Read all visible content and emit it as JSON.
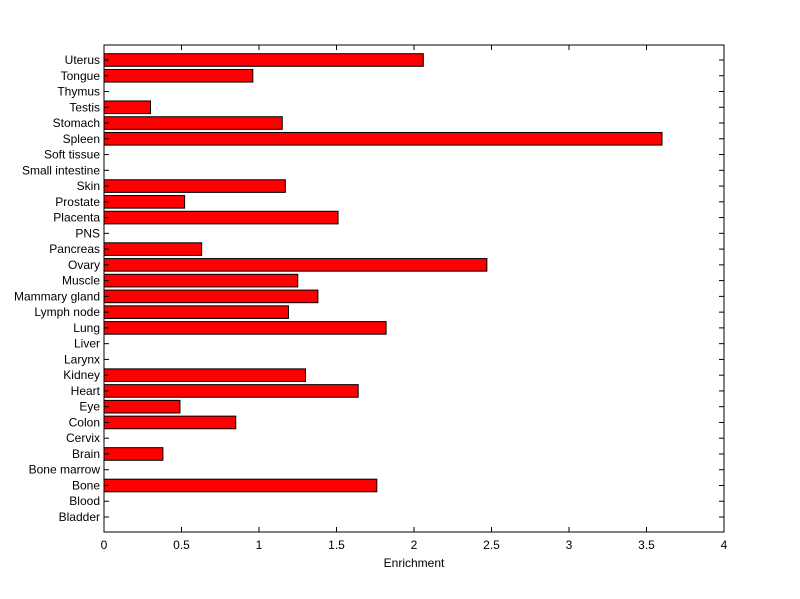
{
  "chart_data": {
    "type": "bar",
    "orientation": "horizontal",
    "title": "",
    "xlabel": "Enrichment",
    "ylabel": "",
    "xlim": [
      0,
      4
    ],
    "x_ticks": [
      "0",
      "0.5",
      "1",
      "1.5",
      "2",
      "2.5",
      "3",
      "3.5",
      "4"
    ],
    "grid": false,
    "categories": [
      "Bladder",
      "Blood",
      "Bone",
      "Bone marrow",
      "Brain",
      "Cervix",
      "Colon",
      "Eye",
      "Heart",
      "Kidney",
      "Larynx",
      "Liver",
      "Lung",
      "Lymph node",
      "Mammary gland",
      "Muscle",
      "Ovary",
      "Pancreas",
      "PNS",
      "Placenta",
      "Prostate",
      "Skin",
      "Small intestine",
      "Soft tissue",
      "Spleen",
      "Stomach",
      "Testis",
      "Thymus",
      "Tongue",
      "Uterus"
    ],
    "values": [
      0,
      0,
      1.76,
      0,
      0.38,
      0,
      0.85,
      0.49,
      1.64,
      1.3,
      0,
      0,
      1.82,
      1.19,
      1.38,
      1.25,
      2.47,
      0.63,
      0,
      1.51,
      0.52,
      1.17,
      0,
      0,
      3.6,
      1.15,
      0.3,
      0,
      0.96,
      2.06
    ],
    "colors": {
      "bar_fill": "#ff0000",
      "bar_stroke": "#000000"
    }
  }
}
